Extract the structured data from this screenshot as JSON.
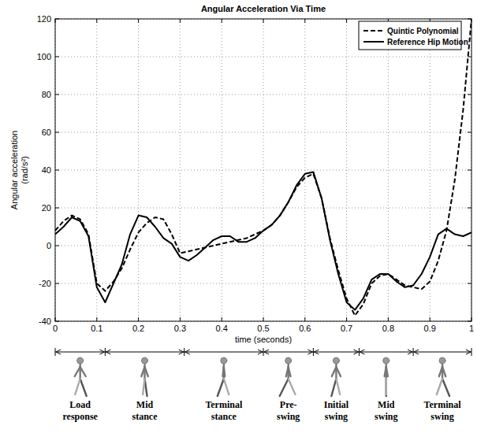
{
  "chart_data": {
    "type": "line",
    "title": "Angular Acceleration Via Time",
    "x_label": "time (seconds)",
    "y_label": "Angular acceleration (rad/s²)",
    "x": [
      0,
      0.02,
      0.04,
      0.06,
      0.08,
      0.1,
      0.12,
      0.14,
      0.16,
      0.18,
      0.2,
      0.22,
      0.24,
      0.26,
      0.28,
      0.3,
      0.32,
      0.34,
      0.36,
      0.38,
      0.4,
      0.42,
      0.44,
      0.46,
      0.48,
      0.5,
      0.52,
      0.54,
      0.56,
      0.58,
      0.6,
      0.62,
      0.64,
      0.66,
      0.68,
      0.7,
      0.72,
      0.74,
      0.76,
      0.78,
      0.8,
      0.82,
      0.84,
      0.86,
      0.88,
      0.9,
      0.92,
      0.94,
      0.96,
      0.98,
      1
    ],
    "series": [
      {
        "name": "Quintic Polynomial",
        "color": "#000000",
        "line_style": "dashed",
        "values": [
          8,
          13,
          16,
          14,
          6,
          -20,
          -24,
          -19,
          -12,
          -2,
          7,
          12,
          15,
          14,
          6,
          -4,
          -3,
          -2,
          -1,
          0,
          1,
          2,
          3,
          4,
          6,
          8,
          11,
          16,
          23,
          31,
          36,
          38,
          25,
          4,
          -13,
          -28,
          -37,
          -31,
          -20,
          -16,
          -15,
          -18,
          -21,
          -22,
          -23,
          -19,
          -8,
          8,
          35,
          72,
          120
        ]
      },
      {
        "name": "Reference Hip Motion",
        "color": "#000000",
        "line_style": "solid",
        "values": [
          6,
          10,
          15,
          13,
          5,
          -22,
          -30,
          -20,
          -10,
          6,
          16,
          15,
          10,
          4,
          1,
          -6,
          -8,
          -5,
          -1,
          3,
          5,
          5,
          2,
          2,
          4,
          8,
          11,
          16,
          23,
          32,
          38,
          39,
          25,
          3,
          -15,
          -30,
          -34,
          -28,
          -18,
          -15,
          -15,
          -19,
          -22,
          -21,
          -15,
          -6,
          6,
          9,
          6,
          5,
          7
        ]
      }
    ],
    "xlim": [
      0,
      1
    ],
    "xticks": [
      0,
      0.1,
      0.2,
      0.3,
      0.4,
      0.5,
      0.6,
      0.7,
      0.8,
      0.9,
      1
    ],
    "ylim": [
      -40,
      120
    ],
    "yticks": [
      -40,
      -20,
      0,
      20,
      40,
      60,
      80,
      100,
      120
    ],
    "grid": true,
    "legend": "upper right",
    "phases": {
      "labels": [
        "Load response",
        "Mid stance",
        "Terminal stance",
        "Pre-swing",
        "Initial swing",
        "Mid swing",
        "Terminal swing"
      ],
      "bounds": [
        0,
        0.12,
        0.31,
        0.5,
        0.62,
        0.73,
        0.86,
        1
      ]
    }
  }
}
